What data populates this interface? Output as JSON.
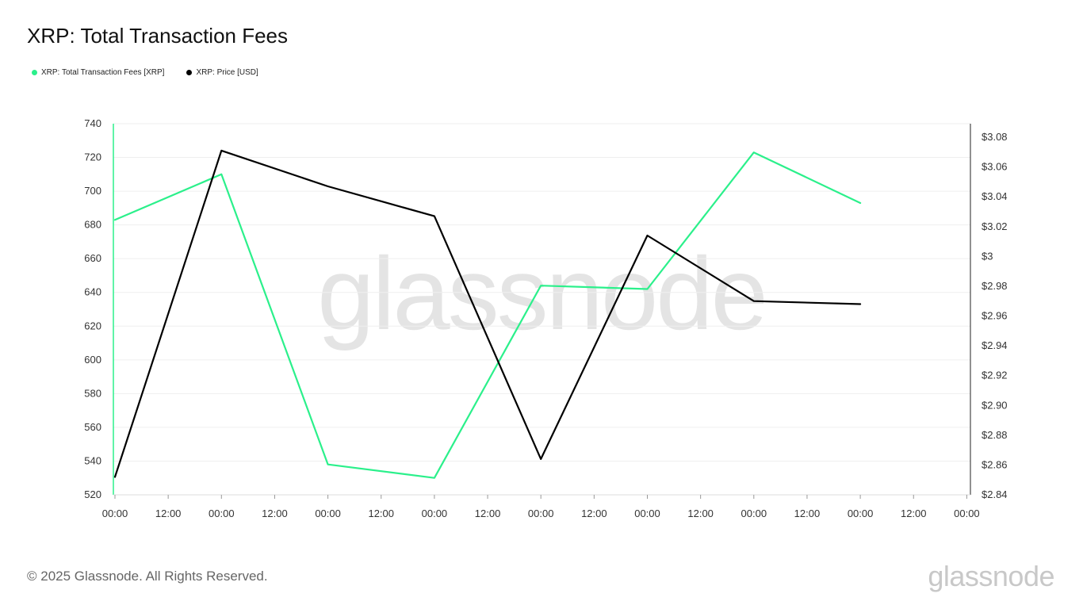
{
  "header": {
    "title": "XRP: Total Transaction Fees"
  },
  "footer": {
    "copyright": "© 2025 Glassnode. All Rights Reserved.",
    "brand": "glassnode"
  },
  "watermark": "glassnode",
  "colors": {
    "fees": "#2bf08b",
    "price": "#000000",
    "grid": "#efefef"
  },
  "chart_data": {
    "type": "line",
    "legend_position": "top-left",
    "grid": true,
    "x_tick_labels": [
      "00:00",
      "12:00",
      "00:00",
      "12:00",
      "00:00",
      "12:00",
      "00:00",
      "12:00",
      "00:00",
      "12:00",
      "00:00",
      "12:00",
      "00:00",
      "12:00",
      "00:00",
      "12:00",
      "00:00"
    ],
    "y_left": {
      "ylim": [
        520,
        740
      ],
      "ticks": [
        740,
        720,
        700,
        680,
        660,
        640,
        620,
        600,
        580,
        560,
        540,
        520
      ]
    },
    "y_right": {
      "ylim": [
        2.84,
        3.09
      ],
      "ticks": [
        "$3.08",
        "$3.06",
        "$3.04",
        "$3.02",
        "$3",
        "$2.98",
        "$2.96",
        "$2.94",
        "$2.92",
        "$2.90",
        "$2.88",
        "$2.86",
        "$2.84"
      ],
      "tick_values": [
        3.08,
        3.06,
        3.04,
        3.02,
        3.0,
        2.98,
        2.96,
        2.94,
        2.92,
        2.9,
        2.88,
        2.86,
        2.84
      ]
    },
    "series": [
      {
        "name": "XRP: Total Transaction Fees [XRP]",
        "axis": "left",
        "color": "#2bf08b",
        "x_index": [
          0,
          2,
          4,
          6,
          8,
          10,
          12,
          14
        ],
        "values": [
          683,
          710,
          538,
          530,
          644,
          642,
          723,
          693
        ]
      },
      {
        "name": "XRP: Price [USD]",
        "axis": "right",
        "color": "#000000",
        "x_index": [
          0,
          2,
          4,
          6,
          8,
          10,
          12,
          14
        ],
        "values": [
          2.852,
          3.071,
          3.047,
          3.027,
          2.864,
          3.014,
          2.97,
          2.968
        ]
      }
    ]
  }
}
